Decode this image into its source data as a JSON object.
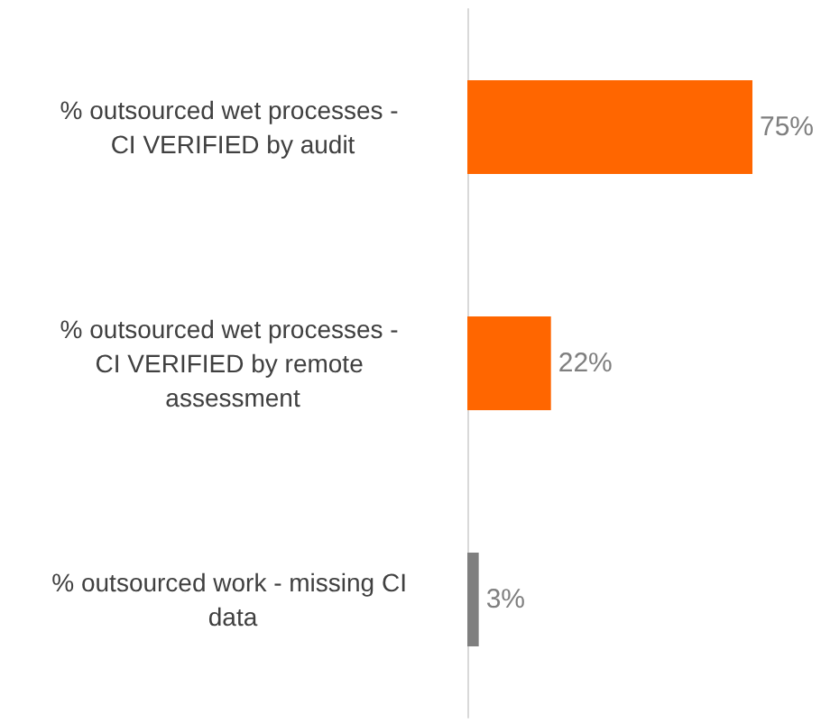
{
  "chart_data": {
    "type": "bar",
    "orientation": "horizontal",
    "categories": [
      "% outsourced wet processes - CI VERIFIED by audit",
      "% outsourced wet processes - CI VERIFIED by remote assessment",
      "% outsourced work - missing CI data"
    ],
    "values": [
      75,
      22,
      3
    ],
    "colors": [
      "#ff6600",
      "#ff6600",
      "#7f7f7f"
    ],
    "value_labels": [
      "75%",
      "22%",
      "3%"
    ],
    "grid": false
  }
}
